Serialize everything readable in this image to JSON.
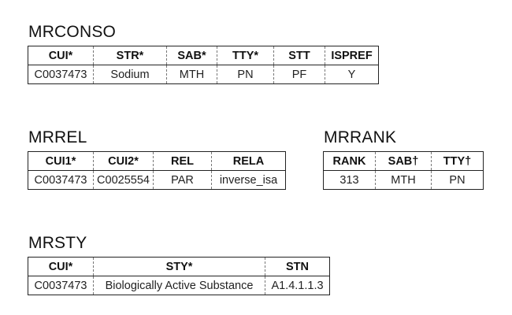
{
  "tables": {
    "mrconso": {
      "title": "MRCONSO",
      "headers": [
        "CUI*",
        "STR*",
        "SAB*",
        "TTY*",
        "STT",
        "ISPREF"
      ],
      "row": [
        "C0037473",
        "Sodium",
        "MTH",
        "PN",
        "PF",
        "Y"
      ]
    },
    "mrrel": {
      "title": "MRREL",
      "headers": [
        "CUI1*",
        "CUI2*",
        "REL",
        "RELA"
      ],
      "row": [
        "C0037473",
        "C0025554",
        "PAR",
        "inverse_isa"
      ]
    },
    "mrrank": {
      "title": "MRRANK",
      "headers": [
        "RANK",
        "SAB†",
        "TTY†"
      ],
      "row": [
        "313",
        "MTH",
        "PN"
      ]
    },
    "mrsty": {
      "title": "MRSTY",
      "headers": [
        "CUI*",
        "STY*",
        "STN"
      ],
      "row": [
        "C0037473",
        "Biologically Active Substance",
        "A1.4.1.1.3"
      ]
    }
  }
}
